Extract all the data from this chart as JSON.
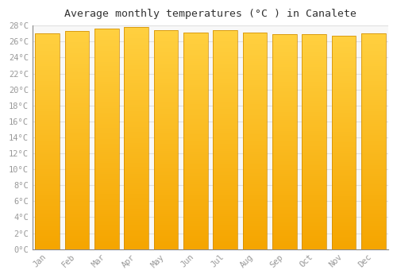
{
  "title": "Average monthly temperatures (°C ) in Canalete",
  "months": [
    "Jan",
    "Feb",
    "Mar",
    "Apr",
    "May",
    "Jun",
    "Jul",
    "Aug",
    "Sep",
    "Oct",
    "Nov",
    "Dec"
  ],
  "temperatures": [
    27.0,
    27.3,
    27.6,
    27.8,
    27.4,
    27.1,
    27.4,
    27.1,
    26.9,
    26.9,
    26.7,
    27.0
  ],
  "ylim": [
    0,
    28
  ],
  "yticks": [
    0,
    2,
    4,
    6,
    8,
    10,
    12,
    14,
    16,
    18,
    20,
    22,
    24,
    26,
    28
  ],
  "bar_color_bottom": "#F5A500",
  "bar_color_top": "#FFD040",
  "background_color": "#ffffff",
  "plot_bg_color": "#f8f8f8",
  "grid_color": "#e0e0e0",
  "title_fontsize": 9.5,
  "tick_fontsize": 7.5,
  "font_family": "monospace",
  "tick_color": "#999999"
}
